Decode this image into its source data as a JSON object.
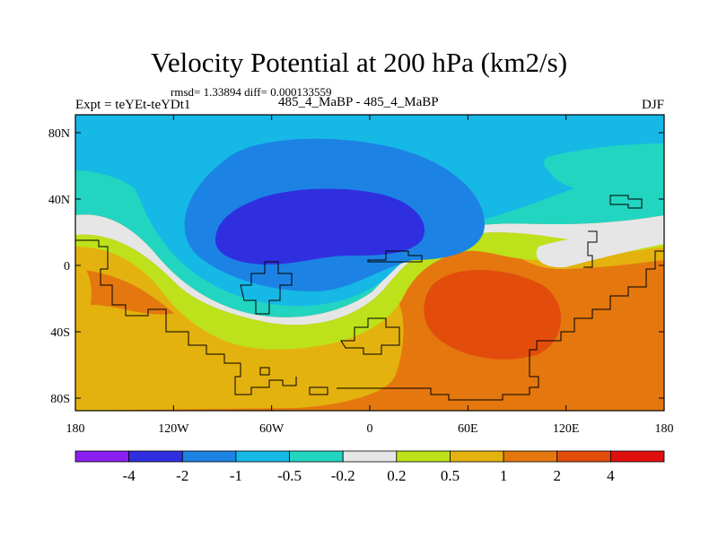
{
  "title": "Velocity Potential at 200 hPa (km2/s)",
  "stats": "rmsd= 1.33894 diff= 0.000133559",
  "experiment": "Expt = teYEt-teYDt1",
  "cases": "485_4_MaBP - 485_4_MaBP",
  "season": "DJF",
  "map": {
    "lat_ticks": [
      "80N",
      "40N",
      "0",
      "40S",
      "80S"
    ],
    "lon_ticks": [
      "180",
      "120W",
      "60W",
      "0",
      "60E",
      "120E",
      "180"
    ],
    "field_description": "Negative velocity potential (upper-level divergence) over the Western Hemisphere north; positive over the Eastern Hemisphere south"
  },
  "colorbar": {
    "levels": [
      "-4",
      "-2",
      "-1",
      "-0.5",
      "-0.2",
      "0.2",
      "0.5",
      "1",
      "2",
      "4"
    ],
    "colors": [
      "#8a1ef0",
      "#2f2fe0",
      "#1c83e4",
      "#16b8e6",
      "#22d5c0",
      "#e6e6e6",
      "#bde11a",
      "#e4b20e",
      "#e4780f",
      "#e34d0c",
      "#e01010"
    ]
  }
}
